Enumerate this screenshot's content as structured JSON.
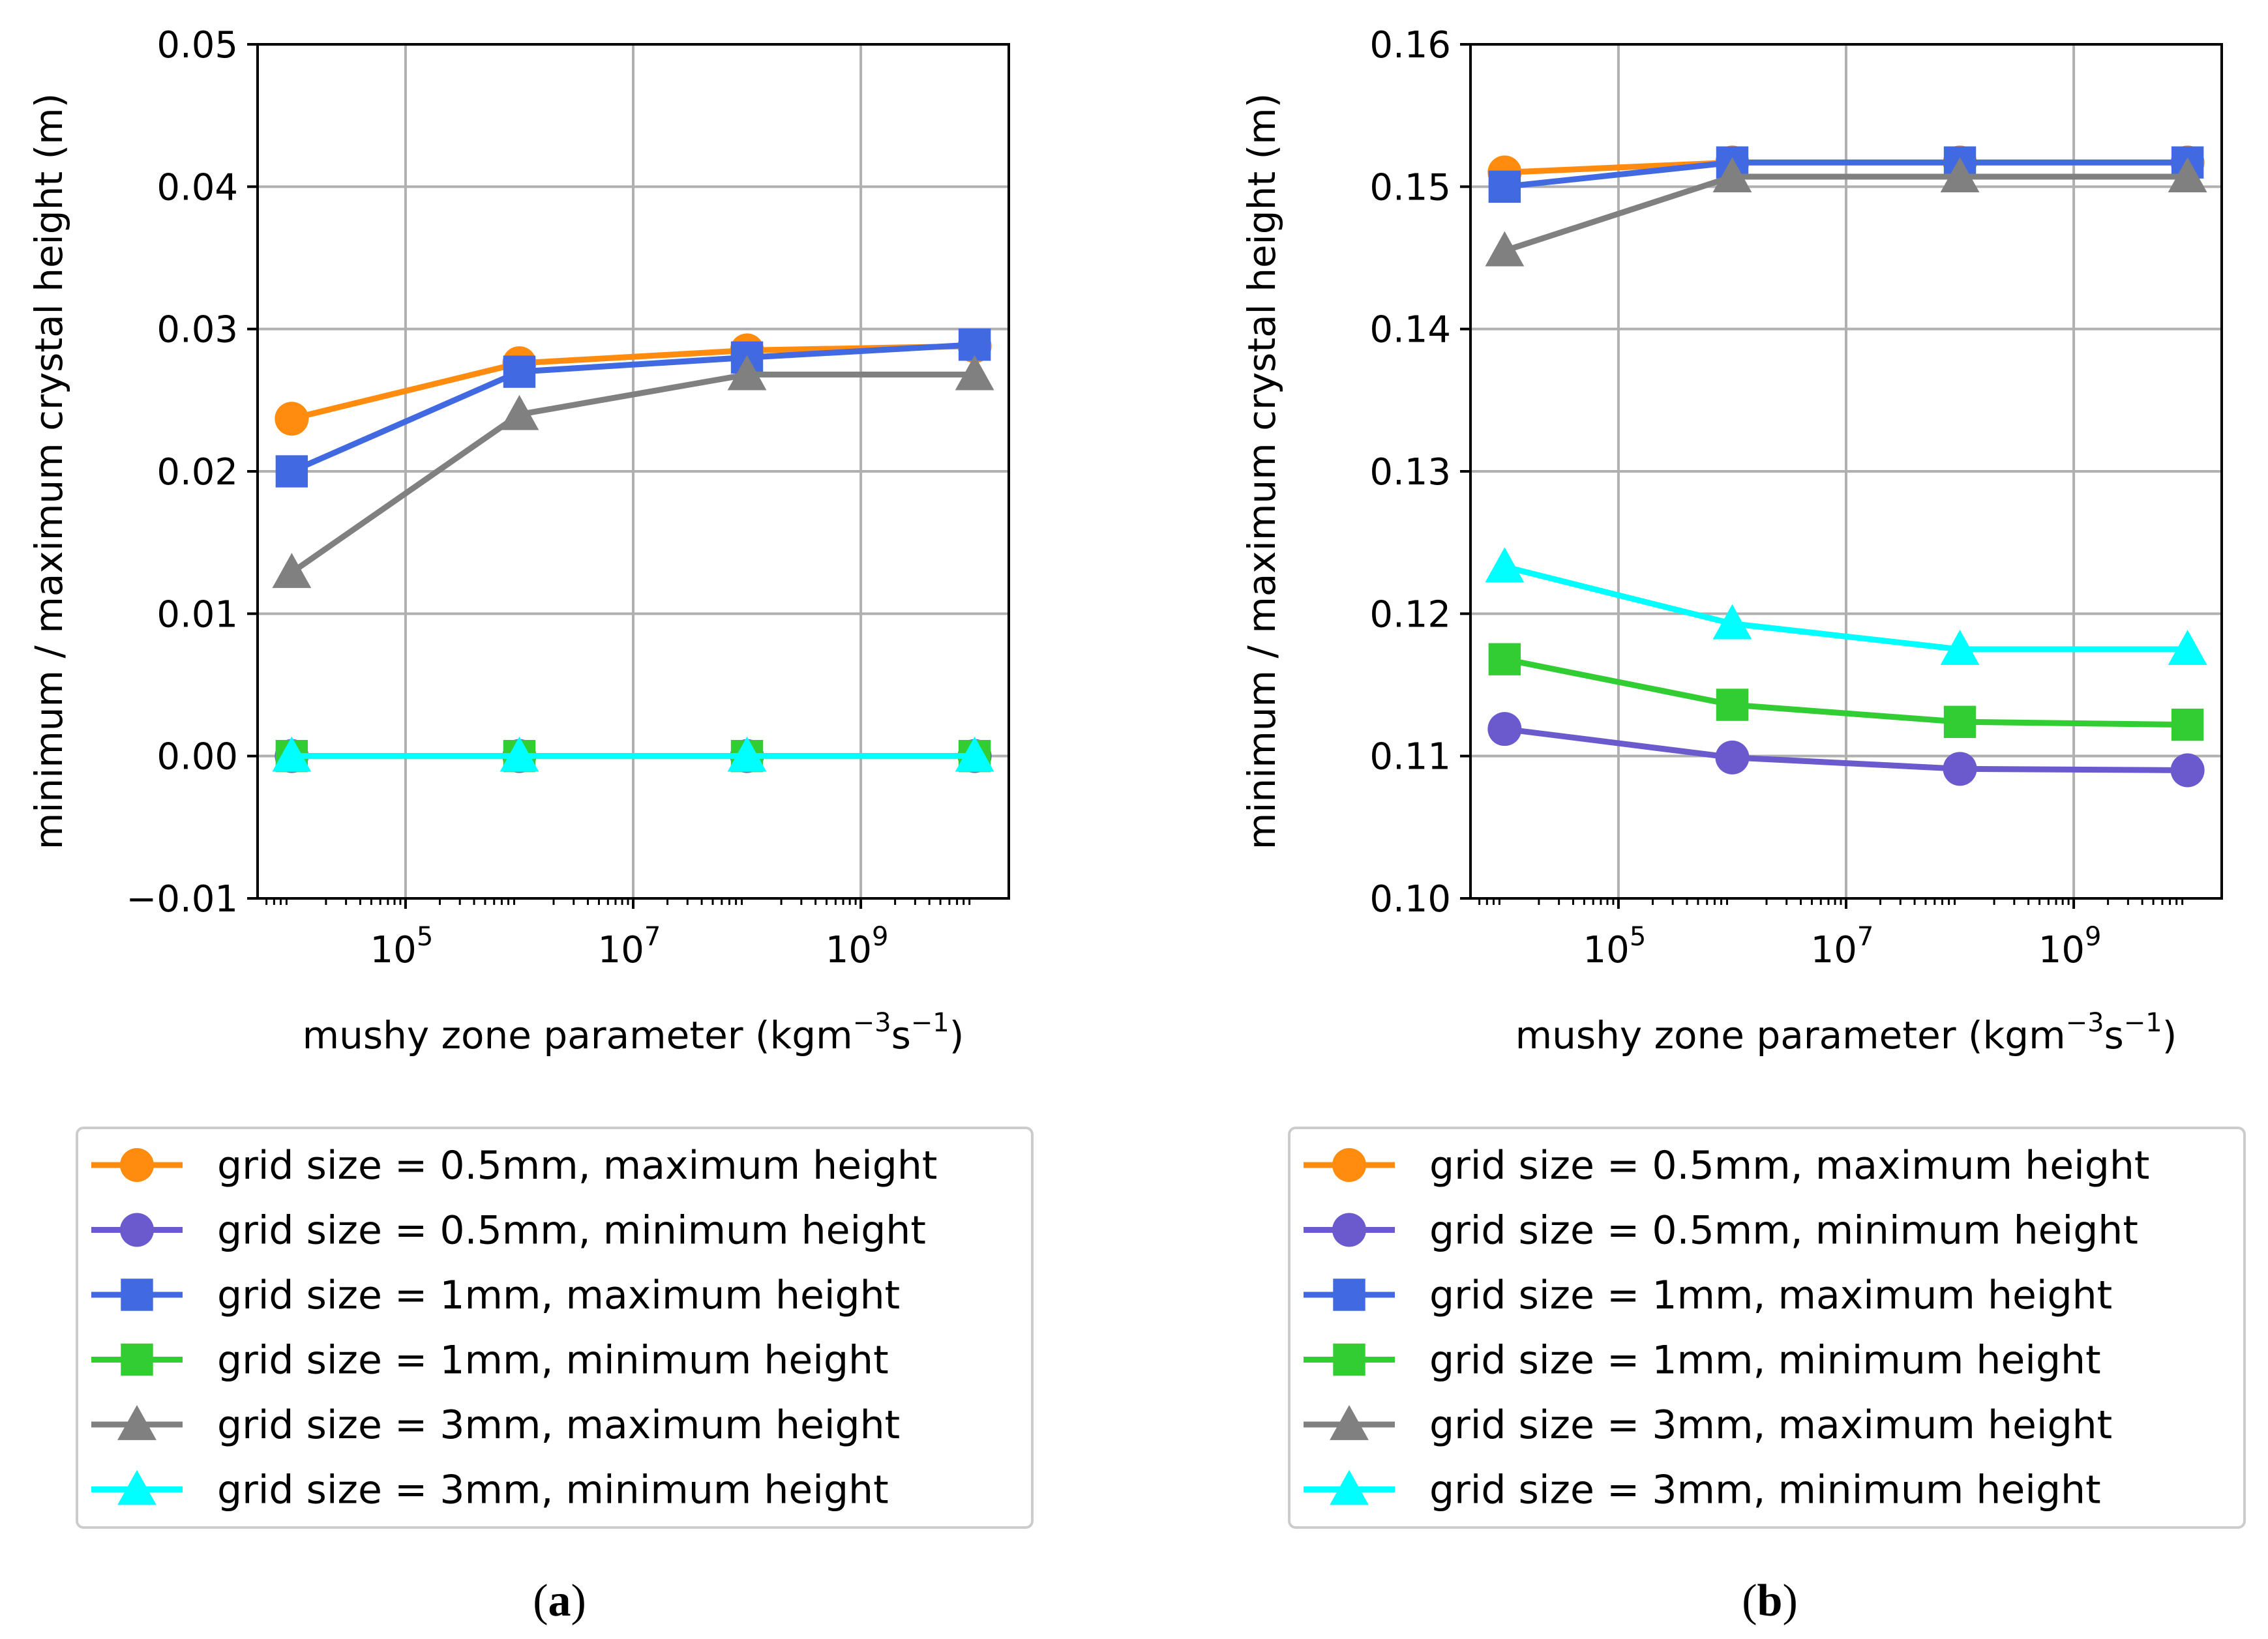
{
  "chart_data": [
    {
      "type": "line",
      "panel_label": "(a)",
      "panel_letter": "a",
      "xscale": "log",
      "xlabel": "mushy zone parameter (kgm",
      "xlabel_sup1": "−3",
      "xlabel_mid": "s",
      "xlabel_sup2": "−1",
      "xlabel_end": ")",
      "ylabel": "minimum / maximum crystal height (m)",
      "x_exponents": [
        4,
        6,
        8,
        10
      ],
      "xlim_exponents": [
        3.7,
        10.3
      ],
      "ylim": [
        -0.01,
        0.05
      ],
      "yticks": [
        -0.01,
        0.0,
        0.01,
        0.02,
        0.03,
        0.04,
        0.05
      ],
      "ytick_labels": [
        "−0.01",
        "0.00",
        "0.01",
        "0.02",
        "0.03",
        "0.04",
        "0.05"
      ],
      "xtick_exponents": [
        5,
        7,
        9
      ],
      "xtick_base": "10",
      "xtick_sups": [
        "5",
        "7",
        "9"
      ],
      "grid": true,
      "legend_position": "below",
      "series": [
        {
          "name": "grid size = 0.5mm, maximum height",
          "color": "#ff8c0f",
          "marker": "circle",
          "values": [
            0.0237,
            0.0276,
            0.0285,
            0.0288
          ]
        },
        {
          "name": "grid size = 0.5mm, minimum height",
          "color": "#6a5acd",
          "marker": "circle",
          "values": [
            0.0,
            0.0,
            0.0,
            0.0
          ]
        },
        {
          "name": "grid size = 1mm, maximum height",
          "color": "#4169e1",
          "marker": "square",
          "values": [
            0.02,
            0.027,
            0.028,
            0.0289
          ]
        },
        {
          "name": "grid size = 1mm, minimum height",
          "color": "#32cd32",
          "marker": "square",
          "values": [
            0.0,
            0.0,
            0.0,
            0.0
          ]
        },
        {
          "name": "grid size = 3mm, maximum height",
          "color": "#808080",
          "marker": "triangle",
          "values": [
            0.0129,
            0.024,
            0.0268,
            0.0268
          ]
        },
        {
          "name": "grid size = 3mm, minimum height",
          "color": "#00ffff",
          "marker": "triangle",
          "values": [
            0.0,
            0.0,
            0.0,
            0.0
          ]
        }
      ]
    },
    {
      "type": "line",
      "panel_label": "(b)",
      "panel_letter": "b",
      "xscale": "log",
      "xlabel": "mushy zone parameter (kgm",
      "xlabel_sup1": "−3",
      "xlabel_mid": "s",
      "xlabel_sup2": "−1",
      "xlabel_end": ")",
      "ylabel": "minimum / maximum crystal height (m)",
      "x_exponents": [
        4,
        6,
        8,
        10
      ],
      "xlim_exponents": [
        3.7,
        10.3
      ],
      "ylim": [
        0.1,
        0.16
      ],
      "yticks": [
        0.1,
        0.11,
        0.12,
        0.13,
        0.14,
        0.15,
        0.16
      ],
      "ytick_labels": [
        "0.10",
        "0.11",
        "0.12",
        "0.13",
        "0.14",
        "0.15",
        "0.16"
      ],
      "xtick_exponents": [
        5,
        7,
        9
      ],
      "xtick_base": "10",
      "xtick_sups": [
        "5",
        "7",
        "9"
      ],
      "grid": true,
      "legend_position": "below",
      "series": [
        {
          "name": "grid size = 0.5mm, maximum height",
          "color": "#ff8c0f",
          "marker": "circle",
          "values": [
            0.151,
            0.1517,
            0.1517,
            0.1517
          ]
        },
        {
          "name": "grid size = 0.5mm, minimum height",
          "color": "#6a5acd",
          "marker": "circle",
          "values": [
            0.1119,
            0.1099,
            0.1091,
            0.109
          ]
        },
        {
          "name": "grid size = 1mm, maximum height",
          "color": "#4169e1",
          "marker": "square",
          "values": [
            0.15,
            0.1517,
            0.1517,
            0.1517
          ]
        },
        {
          "name": "grid size = 1mm, minimum height",
          "color": "#32cd32",
          "marker": "square",
          "values": [
            0.1168,
            0.1136,
            0.1124,
            0.1122
          ]
        },
        {
          "name": "grid size = 3mm, maximum height",
          "color": "#808080",
          "marker": "triangle",
          "values": [
            0.1455,
            0.1507,
            0.1507,
            0.1507
          ]
        },
        {
          "name": "grid size = 3mm, minimum height",
          "color": "#00ffff",
          "marker": "triangle",
          "values": [
            0.1233,
            0.1193,
            0.1175,
            0.1175
          ]
        }
      ]
    }
  ]
}
